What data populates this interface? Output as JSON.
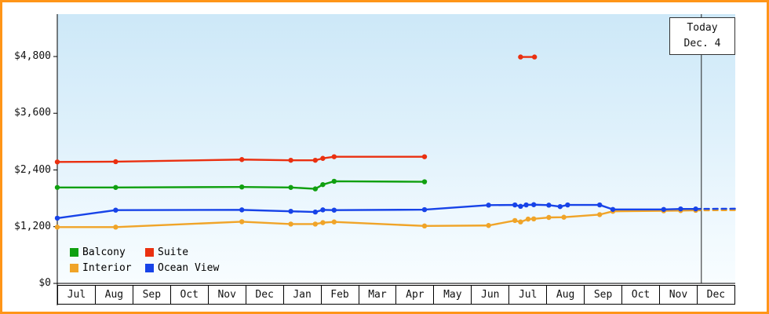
{
  "colors": {
    "frame_border": "#ff9518",
    "today_line": "#222222"
  },
  "today_box": {
    "line1": "Today",
    "line2": "Dec. 4"
  },
  "chart_data": {
    "type": "line",
    "title": "",
    "xlabel": "",
    "ylabel": "",
    "ylim": [
      0,
      4800
    ],
    "xlim_months": [
      0,
      18
    ],
    "grid": false,
    "legend_position": "bottom-left-inside",
    "x_tick_labels": [
      "Jul",
      "Aug",
      "Sep",
      "Oct",
      "Nov",
      "Dec",
      "Jan",
      "Feb",
      "Mar",
      "Apr",
      "May",
      "Jun",
      "Jul",
      "Aug",
      "Sep",
      "Oct",
      "Nov",
      "Dec"
    ],
    "y_tick_labels": [
      "$0",
      "$1,200",
      "$2,400",
      "$3,600",
      "$4,800"
    ],
    "y_tick_values": [
      0,
      1200,
      2400,
      3600,
      4800
    ],
    "today": {
      "x_month": 17.1
    },
    "legend": [
      {
        "label": "Balcony",
        "color": "#10a010"
      },
      {
        "label": "Suite",
        "color": "#ea3010"
      },
      {
        "label": "Interior",
        "color": "#f0a428"
      },
      {
        "label": "Ocean View",
        "color": "#1743e8"
      }
    ],
    "series": [
      {
        "name": "Balcony",
        "color": "#10a010",
        "segments": [
          {
            "dashed": false,
            "points": [
              [
                0,
                2030
              ],
              [
                1.55,
                2030
              ],
              [
                4.9,
                2040
              ],
              [
                6.2,
                2030
              ],
              [
                6.85,
                2000
              ],
              [
                7.05,
                2090
              ],
              [
                7.35,
                2160
              ],
              [
                9.75,
                2150
              ]
            ]
          }
        ]
      },
      {
        "name": "Suite",
        "color": "#ea3010",
        "segments": [
          {
            "dashed": false,
            "points": [
              [
                0,
                2570
              ],
              [
                1.55,
                2575
              ],
              [
                4.9,
                2620
              ],
              [
                6.2,
                2605
              ],
              [
                6.85,
                2605
              ],
              [
                7.05,
                2645
              ],
              [
                7.35,
                2680
              ],
              [
                9.75,
                2680
              ]
            ]
          },
          {
            "dashed": false,
            "points": [
              [
                12.3,
                4790
              ],
              [
                12.67,
                4790
              ]
            ]
          }
        ]
      },
      {
        "name": "Interior",
        "color": "#f0a428",
        "segments": [
          {
            "dashed": false,
            "points": [
              [
                0,
                1190
              ],
              [
                1.55,
                1190
              ],
              [
                4.9,
                1305
              ],
              [
                6.2,
                1255
              ],
              [
                6.85,
                1255
              ],
              [
                7.05,
                1285
              ],
              [
                7.35,
                1300
              ],
              [
                9.75,
                1215
              ],
              [
                11.45,
                1225
              ],
              [
                12.15,
                1330
              ],
              [
                12.3,
                1300
              ],
              [
                12.5,
                1360
              ],
              [
                12.65,
                1365
              ],
              [
                13.05,
                1395
              ],
              [
                13.45,
                1400
              ],
              [
                14.4,
                1455
              ],
              [
                14.75,
                1525
              ],
              [
                16.1,
                1535
              ],
              [
                16.55,
                1540
              ],
              [
                16.95,
                1545
              ]
            ]
          },
          {
            "dashed": true,
            "points": [
              [
                16.95,
                1545
              ],
              [
                18,
                1550
              ]
            ]
          }
        ]
      },
      {
        "name": "Ocean View",
        "color": "#1743e8",
        "segments": [
          {
            "dashed": false,
            "points": [
              [
                0,
                1380
              ],
              [
                1.55,
                1550
              ],
              [
                4.9,
                1555
              ],
              [
                6.2,
                1525
              ],
              [
                6.85,
                1510
              ],
              [
                7.05,
                1555
              ],
              [
                7.35,
                1550
              ],
              [
                9.75,
                1560
              ],
              [
                11.45,
                1655
              ],
              [
                12.15,
                1660
              ],
              [
                12.3,
                1630
              ],
              [
                12.45,
                1660
              ],
              [
                12.65,
                1665
              ],
              [
                13.05,
                1655
              ],
              [
                13.35,
                1625
              ],
              [
                13.55,
                1660
              ],
              [
                14.4,
                1660
              ],
              [
                14.75,
                1565
              ],
              [
                16.1,
                1565
              ],
              [
                16.55,
                1575
              ],
              [
                16.95,
                1575
              ]
            ]
          },
          {
            "dashed": true,
            "points": [
              [
                16.95,
                1575
              ],
              [
                18,
                1580
              ]
            ]
          }
        ]
      }
    ]
  }
}
